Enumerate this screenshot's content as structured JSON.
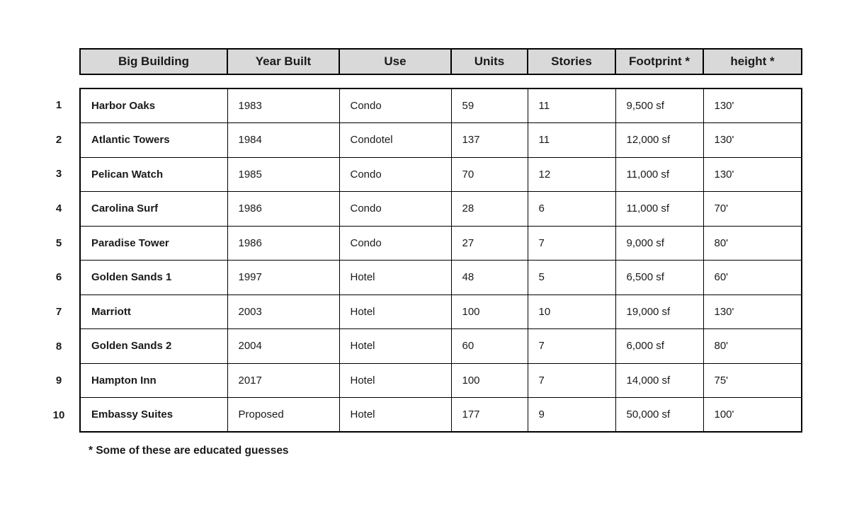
{
  "table": {
    "columns": [
      "Big Building",
      "Year Built",
      "Use",
      "Units",
      "Stories",
      "Footprint *",
      "height *"
    ],
    "rows": [
      {
        "num": "1",
        "name": "Harbor Oaks",
        "year": "1983",
        "use": "Condo",
        "units": "59",
        "stories": "11",
        "footprint": "9,500 sf",
        "height": "130'"
      },
      {
        "num": "2",
        "name": "Atlantic Towers",
        "year": "1984",
        "use": "Condotel",
        "units": "137",
        "stories": "11",
        "footprint": "12,000 sf",
        "height": "130'"
      },
      {
        "num": "3",
        "name": "Pelican Watch",
        "year": "1985",
        "use": "Condo",
        "units": "70",
        "stories": "12",
        "footprint": "11,000 sf",
        "height": "130'"
      },
      {
        "num": "4",
        "name": "Carolina Surf",
        "year": "1986",
        "use": "Condo",
        "units": "28",
        "stories": "6",
        "footprint": "11,000 sf",
        "height": "70'"
      },
      {
        "num": "5",
        "name": "Paradise Tower",
        "year": "1986",
        "use": "Condo",
        "units": "27",
        "stories": "7",
        "footprint": "9,000 sf",
        "height": "80'"
      },
      {
        "num": "6",
        "name": "Golden Sands 1",
        "year": "1997",
        "use": "Hotel",
        "units": "48",
        "stories": "5",
        "footprint": "6,500 sf",
        "height": "60'"
      },
      {
        "num": "7",
        "name": "Marriott",
        "year": "2003",
        "use": "Hotel",
        "units": "100",
        "stories": "10",
        "footprint": "19,000 sf",
        "height": "130'"
      },
      {
        "num": "8",
        "name": "Golden Sands 2",
        "year": "2004",
        "use": "Hotel",
        "units": "60",
        "stories": "7",
        "footprint": "6,000 sf",
        "height": "80'"
      },
      {
        "num": "9",
        "name": "Hampton Inn",
        "year": "2017",
        "use": "Hotel",
        "units": "100",
        "stories": "7",
        "footprint": "14,000 sf",
        "height": "75'"
      },
      {
        "num": "10",
        "name": "Embassy Suites",
        "year": "Proposed",
        "use": "Hotel",
        "units": "177",
        "stories": "9",
        "footprint": "50,000 sf",
        "height": "100'"
      }
    ],
    "footnote": "* Some of these are educated guesses"
  },
  "colors": {
    "header_bg": "#d9d9d9",
    "border": "#000000",
    "text": "#1a1a1a",
    "page_bg": "#ffffff"
  }
}
